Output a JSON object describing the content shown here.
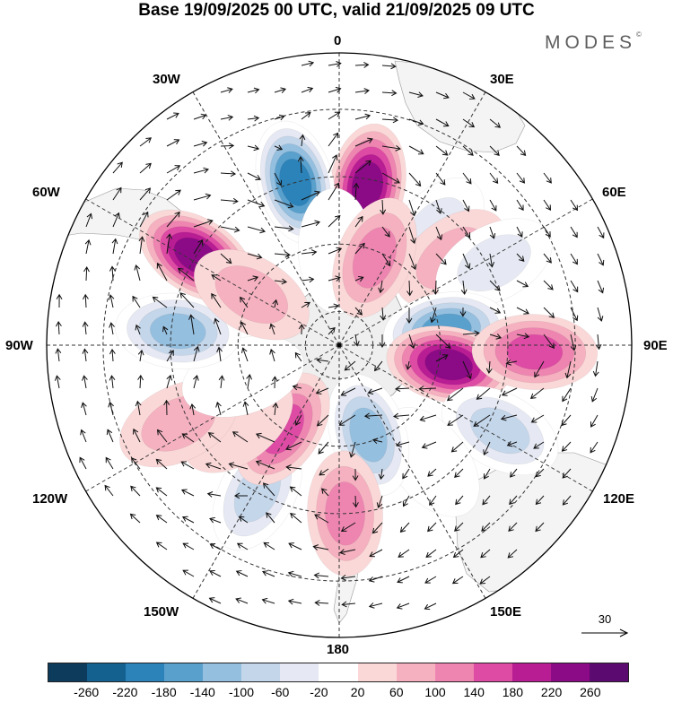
{
  "title": "Base 19/09/2025 00 UTC, valid 21/09/2025 09 UTC",
  "brand": {
    "name": "MODES",
    "mark": "©"
  },
  "longitude_labels": {
    "lon_0": "0",
    "lon_30e": "30E",
    "lon_60e": "60E",
    "lon_90e": "90E",
    "lon_120e": "120E",
    "lon_150e": "150E",
    "lon_180": "180",
    "lon_150w": "150W",
    "lon_120w": "120W",
    "lon_90w": "90W",
    "lon_60w": "60W",
    "lon_30w": "30W"
  },
  "reference_vector": {
    "value": "30"
  },
  "colorbar": {
    "colors": [
      "#0c3b5c",
      "#14618f",
      "#2b83ba",
      "#5aa0cd",
      "#95bfdf",
      "#c4d6ea",
      "#e6e9f3",
      "#ffffff",
      "#fbd8d8",
      "#f5b1c0",
      "#ee85b1",
      "#dd4ba4",
      "#b81d94",
      "#8b0a86",
      "#5b0a70"
    ],
    "tick_labels": [
      "-260",
      "-220",
      "-180",
      "-140",
      "-100",
      "-60",
      "-20",
      "20",
      "60",
      "100",
      "140",
      "180",
      "220",
      "260"
    ]
  },
  "anomalies": [
    {
      "lon": 10,
      "lat": -42,
      "value": 230
    },
    {
      "lon": 40,
      "lat": -46,
      "value": -80
    },
    {
      "lon": 52,
      "lat": -48,
      "value": 60
    },
    {
      "lon": 62,
      "lat": -38,
      "value": -70
    },
    {
      "lon": 82,
      "lat": -58,
      "value": -210
    },
    {
      "lon": 100,
      "lat": -57,
      "value": 250
    },
    {
      "lon": 92,
      "lat": -32,
      "value": 150
    },
    {
      "lon": 118,
      "lat": -36,
      "value": -100
    },
    {
      "lon": 142,
      "lat": -46,
      "value": -40
    },
    {
      "lon": 162,
      "lat": -62,
      "value": -140
    },
    {
      "lon": 178,
      "lat": -40,
      "value": 120
    },
    {
      "lon": -151,
      "lat": -40,
      "value": -110
    },
    {
      "lon": -146,
      "lat": -60,
      "value": 150
    },
    {
      "lon": -128,
      "lat": -52,
      "value": 30
    },
    {
      "lon": -116,
      "lat": -37,
      "value": 60
    },
    {
      "lon": -108,
      "lat": -60,
      "value": -40
    },
    {
      "lon": -85,
      "lat": -42,
      "value": -150
    },
    {
      "lon": -58,
      "lat": -40,
      "value": 250
    },
    {
      "lon": -60,
      "lat": -60,
      "value": 70
    },
    {
      "lon": -15,
      "lat": -40,
      "value": -250
    },
    {
      "lon": -2,
      "lat": -62,
      "value": -40
    },
    {
      "lon": 22,
      "lat": -62,
      "value": 110
    }
  ]
}
